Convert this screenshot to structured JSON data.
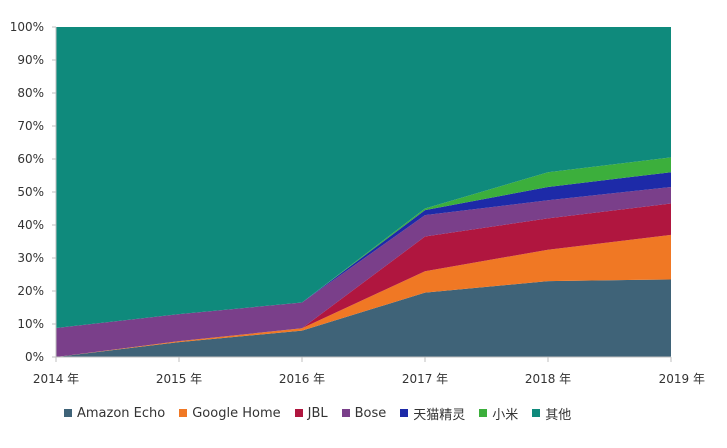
{
  "chart_data": {
    "type": "area",
    "stacked": true,
    "categories": [
      "2014 年",
      "2015 年",
      "2016 年",
      "2017 年",
      "2018 年",
      "2019 年"
    ],
    "y_tick_labels": [
      "0%",
      "10%",
      "20%",
      "30%",
      "40%",
      "50%",
      "60%",
      "70%",
      "80%",
      "90%",
      "100%"
    ],
    "ylim": [
      0,
      100
    ],
    "grid": false,
    "legend_position": "bottom",
    "series": [
      {
        "name": "Amazon Echo",
        "color": "#3f6378",
        "values": [
          0,
          4.5,
          8,
          19.5,
          23,
          23.5
        ]
      },
      {
        "name": "Google Home",
        "color": "#f07824",
        "values": [
          0,
          0.3,
          0.7,
          6.5,
          9.5,
          13.5
        ]
      },
      {
        "name": "JBL",
        "color": "#b0163f",
        "values": [
          0,
          0,
          0,
          10.5,
          9.5,
          9.5
        ]
      },
      {
        "name": "Bose",
        "color": "#7a3f8a",
        "values": [
          8.8,
          8.2,
          7.8,
          6.5,
          5.5,
          5
        ]
      },
      {
        "name": "天猫精灵",
        "color": "#1d2aa8",
        "values": [
          0,
          0,
          0,
          1.5,
          4,
          4.5
        ]
      },
      {
        "name": "小米",
        "color": "#3caf3c",
        "values": [
          0,
          0,
          0,
          0.5,
          4.5,
          4.5
        ]
      },
      {
        "name": "其他",
        "color": "#0f8a7c",
        "values": [
          91.2,
          87,
          83.5,
          55,
          44,
          39.5
        ]
      }
    ]
  }
}
